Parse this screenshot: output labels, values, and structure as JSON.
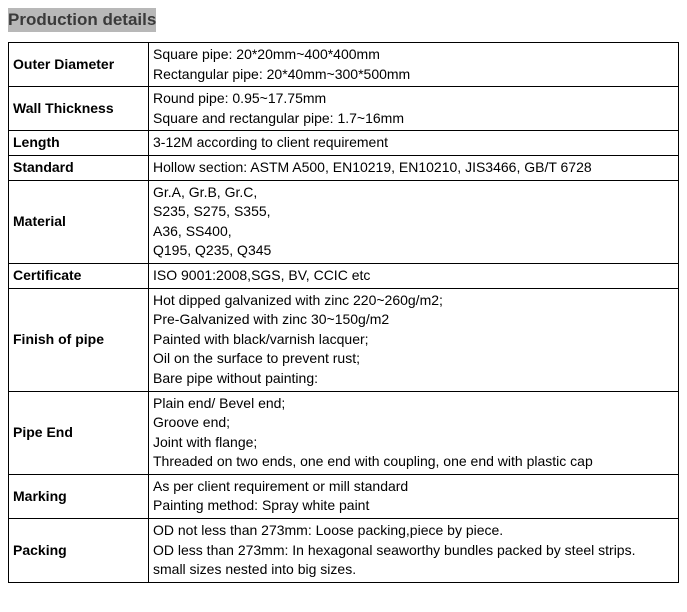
{
  "title": "Production details",
  "table": {
    "rows": [
      {
        "label": "Outer Diameter",
        "lines": [
          "Square pipe: 20*20mm~400*400mm",
          "Rectangular pipe: 20*40mm~300*500mm"
        ]
      },
      {
        "label": "Wall Thickness",
        "lines": [
          "Round pipe: 0.95~17.75mm",
          "Square and rectangular pipe: 1.7~16mm"
        ]
      },
      {
        "label": "Length",
        "lines": [
          "3-12M according to client requirement"
        ]
      },
      {
        "label": "Standard",
        "lines": [
          "Hollow section: ASTM A500, EN10219, EN10210, JIS3466, GB/T 6728"
        ]
      },
      {
        "label": "Material",
        "lines": [
          "Gr.A, Gr.B, Gr.C,",
          "S235, S275, S355,",
          "A36, SS400,",
          "Q195, Q235, Q345"
        ]
      },
      {
        "label": "Certificate",
        "lines": [
          "ISO 9001:2008,SGS, BV, CCIC etc"
        ]
      },
      {
        "label": "Finish of pipe",
        "lines": [
          "Hot dipped galvanized with zinc 220~260g/m2;",
          "Pre-Galvanized with zinc 30~150g/m2",
          "Painted with black/varnish lacquer;",
          "Oil on the surface to prevent rust;",
          "Bare pipe without painting:"
        ]
      },
      {
        "label": "Pipe End",
        "lines": [
          "Plain end/ Bevel end;",
          "Groove end;",
          "Joint with flange;",
          "Threaded on two ends, one end with coupling, one end with plastic cap"
        ]
      },
      {
        "label": "Marking",
        "lines": [
          "As per client requirement or mill standard",
          "Painting method: Spray white paint"
        ]
      },
      {
        "label": "Packing",
        "lines": [
          "OD not less than 273mm: Loose packing,piece by piece.",
          "OD less than 273mm: In hexagonal seaworthy bundles packed by steel strips.",
          "small sizes nested into big sizes."
        ]
      }
    ]
  }
}
